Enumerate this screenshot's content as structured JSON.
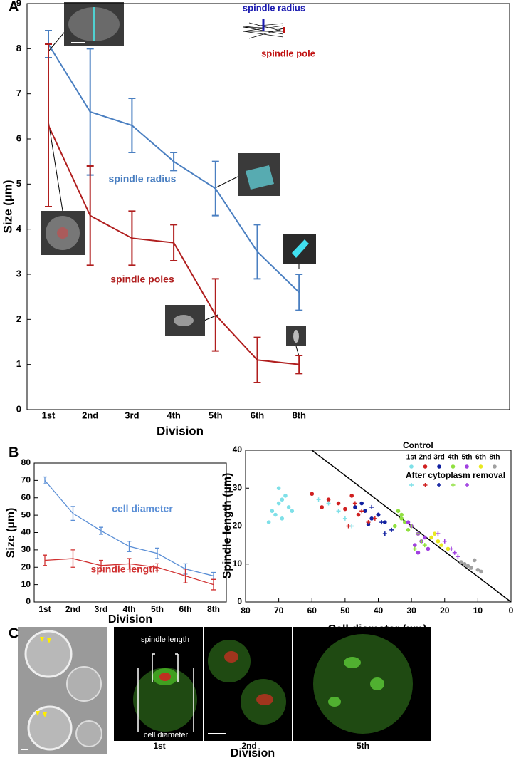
{
  "chart_data": [
    {
      "type": "line",
      "panel_label": "A",
      "categories": [
        "1st",
        "2nd",
        "3rd",
        "4th",
        "5th",
        "6th",
        "8th"
      ],
      "series": [
        {
          "name": "spindle radius",
          "color": "#4a7fc1",
          "values": [
            8.1,
            6.6,
            6.3,
            5.5,
            4.9,
            3.5,
            2.6
          ],
          "errors": [
            0.3,
            1.4,
            0.6,
            0.2,
            0.6,
            0.6,
            0.4
          ]
        },
        {
          "name": "spindle poles",
          "color": "#b01e1e",
          "values": [
            6.3,
            4.3,
            3.8,
            3.7,
            2.1,
            1.1,
            1.0
          ],
          "errors": [
            1.8,
            1.1,
            0.6,
            0.4,
            0.8,
            0.5,
            0.2
          ]
        }
      ],
      "ylim": [
        0,
        9
      ],
      "yticks": [
        0,
        1,
        2,
        3,
        4,
        5,
        6,
        7,
        8,
        9
      ],
      "xlabel": "Division",
      "ylabel": "Size (µm)",
      "annotations": [
        {
          "text": "spindle radius",
          "color": "#1a1ab0"
        },
        {
          "text": "spindle pole",
          "color": "#c01010"
        }
      ]
    },
    {
      "type": "line",
      "panel_label": "B",
      "categories": [
        "1st",
        "2nd",
        "3rd",
        "4th",
        "5th",
        "6th",
        "8th"
      ],
      "series": [
        {
          "name": "cell diameter",
          "color": "#5b8fd6",
          "values": [
            70,
            51,
            41,
            32,
            28,
            19,
            15
          ],
          "errors": [
            2,
            4,
            2,
            3,
            3,
            3,
            2
          ]
        },
        {
          "name": "spindle length",
          "color": "#d03030",
          "values": [
            24,
            25,
            21,
            22,
            20,
            15,
            10
          ],
          "errors": [
            3,
            5,
            3,
            3,
            2,
            4,
            3
          ]
        }
      ],
      "ylim": [
        0,
        80
      ],
      "yticks": [
        0,
        10,
        20,
        30,
        40,
        50,
        60,
        70,
        80
      ],
      "xlabel": "Division",
      "ylabel": "Size (µm)"
    },
    {
      "type": "scatter",
      "xlim": [
        80,
        0
      ],
      "xticks": [
        80,
        70,
        60,
        50,
        40,
        30,
        20,
        10,
        0
      ],
      "ylim": [
        0,
        40
      ],
      "yticks": [
        0,
        10,
        20,
        30,
        40
      ],
      "xlabel": "Cell diameter (µm)",
      "ylabel": "Spindle length (µm)",
      "legend_titles": [
        "Control",
        "After cytoplasm removal"
      ],
      "reference_line": {
        "x": [
          0,
          60
        ],
        "y": [
          0,
          40
        ]
      },
      "series": [
        {
          "name": "1st",
          "marker": "dot",
          "color": "#7fe0e8",
          "x": [
            72,
            70,
            69,
            68,
            71,
            67,
            70,
            66,
            73,
            69
          ],
          "y": [
            24,
            26,
            22,
            28,
            23,
            25,
            30,
            24,
            21,
            27
          ]
        },
        {
          "name": "2nd",
          "marker": "dot",
          "color": "#d02020",
          "x": [
            60,
            55,
            52,
            50,
            48,
            57,
            46
          ],
          "y": [
            28.5,
            27,
            26,
            24.5,
            28,
            25,
            23
          ]
        },
        {
          "name": "3rd",
          "marker": "dot",
          "color": "#1020a0",
          "x": [
            47,
            44,
            42,
            40,
            38,
            45,
            43
          ],
          "y": [
            25,
            24,
            22,
            23,
            21,
            26,
            20.5
          ]
        },
        {
          "name": "4th",
          "marker": "dot",
          "color": "#90e040",
          "x": [
            34,
            33,
            32,
            35,
            31,
            33
          ],
          "y": [
            24,
            22,
            21,
            20,
            19,
            23
          ]
        },
        {
          "name": "5th",
          "marker": "dot",
          "color": "#a040e0",
          "x": [
            30,
            28,
            27,
            29,
            26,
            31,
            25,
            28
          ],
          "y": [
            20,
            18,
            16,
            15,
            17,
            21,
            14,
            13
          ]
        },
        {
          "name": "6th",
          "marker": "dot",
          "color": "#e8e820",
          "x": [
            24,
            22,
            21,
            19,
            23
          ],
          "y": [
            17,
            16,
            15,
            14,
            18
          ]
        },
        {
          "name": "8th",
          "marker": "dot",
          "color": "#a0a0a0",
          "x": [
            14,
            12,
            11,
            10,
            13,
            15,
            9
          ],
          "y": [
            10,
            9,
            11,
            8.5,
            9.5,
            10.5,
            8
          ]
        },
        {
          "marker": "plus",
          "color": "#7fe0e8",
          "x": [
            55,
            52,
            50,
            58,
            48
          ],
          "y": [
            26,
            24,
            22,
            27,
            20
          ]
        },
        {
          "marker": "plus",
          "color": "#d02020",
          "x": [
            47,
            45,
            43,
            41,
            49
          ],
          "y": [
            26,
            24,
            21,
            22,
            20
          ]
        },
        {
          "marker": "plus",
          "color": "#1020a0",
          "x": [
            42,
            40,
            38,
            36,
            39
          ],
          "y": [
            25,
            23,
            18,
            19,
            21
          ]
        },
        {
          "marker": "plus",
          "color": "#90e040",
          "x": [
            30,
            28,
            27,
            26,
            29
          ],
          "y": [
            20,
            18,
            16,
            15,
            14
          ]
        },
        {
          "marker": "plus",
          "color": "#a040e0",
          "x": [
            22,
            20,
            18,
            16,
            17
          ],
          "y": [
            18,
            16,
            14,
            12,
            13
          ]
        }
      ]
    }
  ],
  "panel_c": {
    "panel_label": "C",
    "annotations": [
      "spindle length",
      "cell diameter"
    ],
    "captions": [
      "1st",
      "2nd",
      "5th"
    ],
    "xlabel": "Division"
  }
}
